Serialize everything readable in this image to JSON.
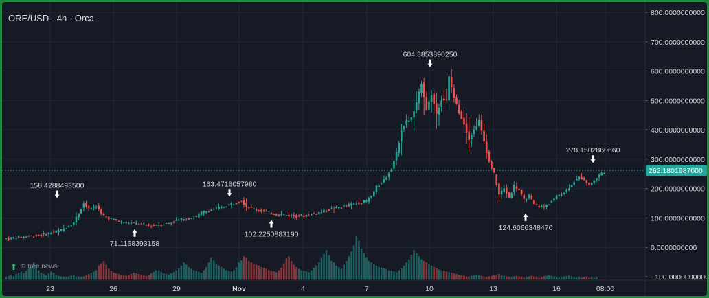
{
  "title": "ORE/USD - 4h - Orca",
  "watermark": "© tree.news",
  "colors": {
    "background": "#161a25",
    "frame": "#1c8a3a",
    "up": "#26a69a",
    "down": "#ef5350",
    "grid": "#232836",
    "text": "#d1d4dc",
    "price_tag": "#26a69a"
  },
  "chart_data": {
    "type": "candlestick",
    "y_axis": {
      "ticks": [
        "800.0000000000",
        "700.0000000000",
        "600.0000000000",
        "500.0000000000",
        "400.0000000000",
        "300.0000000000",
        "200.0000000000",
        "100.0000000000",
        "0.0000000000",
        "−100.0000000000"
      ],
      "range": [
        -100,
        800
      ]
    },
    "x_axis": {
      "ticks": [
        "23",
        "26",
        "29",
        "Nov",
        "4",
        "7",
        "10",
        "13",
        "16",
        "08:00"
      ]
    },
    "current_price": {
      "value": 262.1801987,
      "label": "262.1801987000"
    },
    "annotations": [
      {
        "label": "158.4288493500",
        "value": 158.42884935,
        "type": "high",
        "near": "23"
      },
      {
        "label": "71.1168393158",
        "value": 71.1168393158,
        "type": "low",
        "near": "27"
      },
      {
        "label": "163.4716057980",
        "value": 163.471605798,
        "type": "high",
        "near": "Nov"
      },
      {
        "label": "102.2250883190",
        "value": 102.225088319,
        "type": "low",
        "near": "3"
      },
      {
        "label": "604.3853890250",
        "value": 604.385389025,
        "type": "high",
        "near": "10"
      },
      {
        "label": "124.6066348470",
        "value": 124.606634847,
        "type": "low",
        "near": "14"
      },
      {
        "label": "278.1502860660",
        "value": 278.150286066,
        "type": "high",
        "near": "18"
      }
    ],
    "price_path": [
      [
        0,
        30
      ],
      [
        14,
        42
      ],
      [
        22,
        58
      ],
      [
        27,
        85
      ],
      [
        29,
        118
      ],
      [
        31,
        150
      ],
      [
        33,
        130
      ],
      [
        36,
        142
      ],
      [
        38,
        112
      ],
      [
        42,
        96
      ],
      [
        46,
        86
      ],
      [
        50,
        82
      ],
      [
        54,
        78
      ],
      [
        58,
        73
      ],
      [
        62,
        78
      ],
      [
        66,
        84
      ],
      [
        68,
        92
      ],
      [
        71,
        96
      ],
      [
        76,
        104
      ],
      [
        78,
        118
      ],
      [
        82,
        128
      ],
      [
        86,
        136
      ],
      [
        90,
        148
      ],
      [
        92,
        152
      ],
      [
        94,
        160
      ],
      [
        96,
        140
      ],
      [
        100,
        128
      ],
      [
        104,
        120
      ],
      [
        108,
        113
      ],
      [
        112,
        110
      ],
      [
        116,
        106
      ],
      [
        120,
        110
      ],
      [
        124,
        116
      ],
      [
        128,
        126
      ],
      [
        132,
        134
      ],
      [
        136,
        142
      ],
      [
        140,
        150
      ],
      [
        144,
        158
      ],
      [
        146,
        175
      ],
      [
        148,
        205
      ],
      [
        150,
        220
      ],
      [
        152,
        240
      ],
      [
        154,
        270
      ],
      [
        156,
        320
      ],
      [
        158,
        400
      ],
      [
        160,
        430
      ],
      [
        162,
        440
      ],
      [
        164,
        490
      ],
      [
        166,
        560
      ],
      [
        168,
        470
      ],
      [
        170,
        520
      ],
      [
        172,
        455
      ],
      [
        174,
        505
      ],
      [
        176,
        500
      ],
      [
        177,
        580
      ],
      [
        179,
        510
      ],
      [
        181,
        460
      ],
      [
        183,
        420
      ],
      [
        185,
        370
      ],
      [
        187,
        400
      ],
      [
        189,
        430
      ],
      [
        191,
        360
      ],
      [
        193,
        290
      ],
      [
        195,
        250
      ],
      [
        197,
        180
      ],
      [
        199,
        200
      ],
      [
        201,
        170
      ],
      [
        203,
        210
      ],
      [
        205,
        195
      ],
      [
        207,
        160
      ],
      [
        209,
        175
      ],
      [
        211,
        145
      ],
      [
        213,
        140
      ],
      [
        215,
        138
      ],
      [
        217,
        150
      ],
      [
        219,
        165
      ],
      [
        221,
        180
      ],
      [
        223,
        188
      ],
      [
        225,
        205
      ],
      [
        227,
        225
      ],
      [
        229,
        238
      ],
      [
        231,
        232
      ],
      [
        233,
        212
      ],
      [
        235,
        228
      ],
      [
        237,
        246
      ],
      [
        239,
        258
      ]
    ],
    "volume": [
      8,
      12,
      15,
      10,
      18,
      22,
      25,
      20,
      28,
      35,
      42,
      55,
      48,
      30,
      22,
      18,
      14,
      20,
      25,
      22,
      16,
      12,
      10,
      9,
      8,
      10,
      12,
      14,
      10,
      9,
      8,
      10,
      14,
      18,
      22,
      26,
      30,
      45,
      52,
      60,
      48,
      35,
      28,
      22,
      20,
      18,
      16,
      14,
      12,
      15,
      18,
      22,
      20,
      18,
      16,
      14,
      12,
      15,
      20,
      25,
      30,
      28,
      24,
      20,
      18,
      16,
      20,
      24,
      30,
      36,
      45,
      55,
      48,
      40,
      35,
      30,
      28,
      25,
      22,
      30,
      40,
      55,
      70,
      62,
      50,
      45,
      40,
      35,
      30,
      28,
      26,
      30,
      40,
      55,
      62,
      75,
      70,
      60,
      55,
      50,
      48,
      45,
      40,
      38,
      35,
      30,
      28,
      26,
      24,
      30,
      38,
      52,
      68,
      75,
      60,
      48,
      40,
      35,
      30,
      28,
      26,
      24,
      30,
      38,
      45,
      55,
      70,
      82,
      95,
      78,
      60,
      55,
      45,
      40,
      35,
      48,
      60,
      75,
      90,
      110,
      140,
      125,
      100,
      85,
      70,
      60,
      55,
      50,
      45,
      40,
      38,
      36,
      34,
      30,
      28,
      26,
      24,
      30,
      36,
      45,
      55,
      65,
      80,
      95,
      85,
      75,
      65,
      60,
      55,
      50,
      45,
      40,
      36,
      32,
      30,
      28,
      26,
      24,
      22,
      20,
      18,
      16,
      14,
      12,
      10,
      10,
      12,
      14,
      16,
      14,
      12,
      10,
      8,
      10,
      12,
      14,
      16,
      18,
      14,
      12,
      10,
      8,
      8,
      10,
      12,
      10,
      8,
      6,
      8,
      10,
      12,
      10,
      8,
      6,
      8,
      10,
      12,
      14,
      12,
      10,
      8,
      6,
      8,
      10,
      12,
      14,
      10,
      8,
      6,
      8,
      6,
      8,
      10,
      6,
      8,
      6,
      8
    ]
  }
}
